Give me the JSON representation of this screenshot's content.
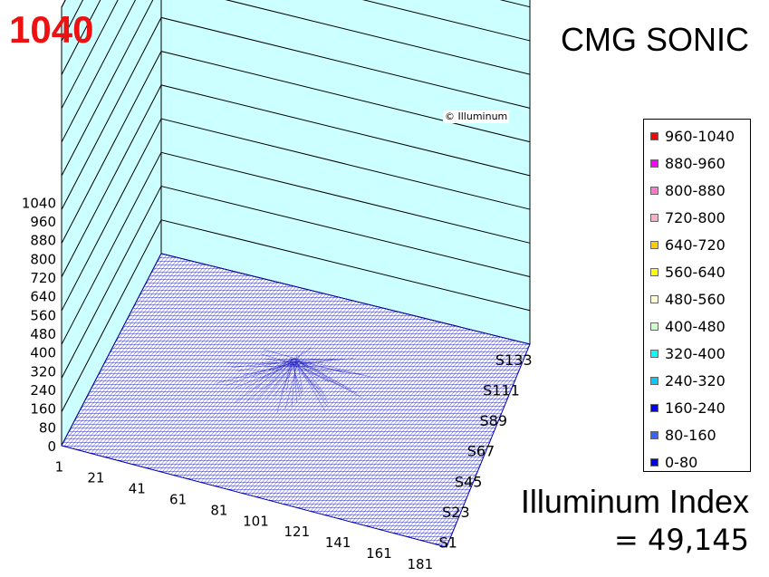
{
  "max_label": "1040",
  "title": "CMG SONIC",
  "copyright": "© Illuminum",
  "index": {
    "label": "Illuminum Index",
    "value": "= 49,145"
  },
  "legend": [
    {
      "label": "960-1040",
      "color": "#ff0000"
    },
    {
      "label": "880-960",
      "color": "#ff00ff"
    },
    {
      "label": "800-880",
      "color": "#ff77cc"
    },
    {
      "label": "720-800",
      "color": "#ffaacc"
    },
    {
      "label": "640-720",
      "color": "#ffcc00"
    },
    {
      "label": "560-640",
      "color": "#ffff00"
    },
    {
      "label": "480-560",
      "color": "#ffffcc"
    },
    {
      "label": "400-480",
      "color": "#ccffcc"
    },
    {
      "label": "320-400",
      "color": "#00ffff"
    },
    {
      "label": "240-320",
      "color": "#00ccff"
    },
    {
      "label": "160-240",
      "color": "#0000ff"
    },
    {
      "label": "80-160",
      "color": "#3366ff"
    },
    {
      "label": "0-80",
      "color": "#0000ee"
    }
  ],
  "chart_data": {
    "type": "surface",
    "z_ticks": [
      "0",
      "80",
      "160",
      "240",
      "320",
      "400",
      "480",
      "560",
      "640",
      "720",
      "800",
      "880",
      "960",
      "1040"
    ],
    "x_ticks": [
      "1",
      "21",
      "41",
      "61",
      "81",
      "101",
      "121",
      "141",
      "161",
      "181"
    ],
    "y_ticks": [
      "S1",
      "S23",
      "S45",
      "S67",
      "S89",
      "S111",
      "S133"
    ],
    "zlim": [
      0,
      1040
    ],
    "surface_color": "#0000aa",
    "wall_color": "#ccffff"
  }
}
